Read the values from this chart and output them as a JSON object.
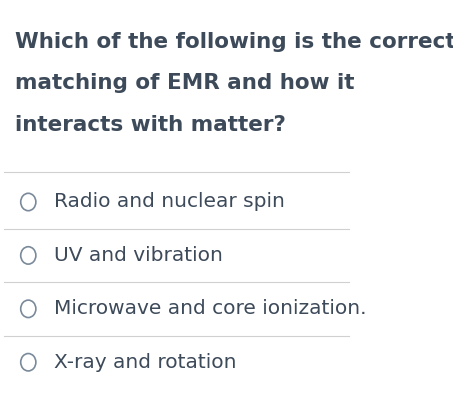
{
  "title_lines": [
    "Which of the following is the correct",
    "matching of EMR and how it",
    "interacts with matter?"
  ],
  "options": [
    "Radio and nuclear spin",
    "UV and vibration",
    "Microwave and core ionization.",
    "X-ray and rotation"
  ],
  "bg_color": "#ffffff",
  "text_color": "#3d4a5a",
  "line_color": "#d0d0d0",
  "circle_color": "#7a8a9a",
  "title_fontsize": 15.5,
  "option_fontsize": 14.5,
  "fig_width": 4.53,
  "fig_height": 4.04
}
